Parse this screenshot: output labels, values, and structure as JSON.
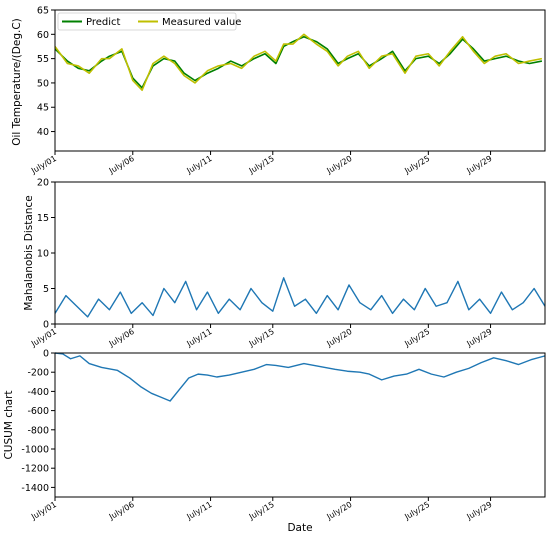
{
  "chart_data": [
    {
      "type": "line",
      "panel": "top",
      "ylabel": "Oil Temperature/(Deg.C)",
      "xlabel": "",
      "ylim": [
        36,
        65
      ],
      "xlim": [
        1,
        32.5
      ],
      "yticks": [
        40,
        45,
        50,
        55,
        60,
        65
      ],
      "xticks": [
        {
          "day": 1,
          "label": "July/01"
        },
        {
          "day": 6,
          "label": "July/06"
        },
        {
          "day": 11,
          "label": "July/11"
        },
        {
          "day": 15,
          "label": "July/15"
        },
        {
          "day": 20,
          "label": "July/20"
        },
        {
          "day": 25,
          "label": "July/25"
        },
        {
          "day": 29,
          "label": "July/29"
        }
      ],
      "legend": {
        "placement": "top-left"
      },
      "series": [
        {
          "name": "Predict",
          "color": "#008000",
          "x": [
            1.0,
            1.8,
            2.5,
            3.2,
            4.0,
            4.5,
            5.3,
            6.0,
            6.6,
            7.3,
            8.0,
            8.7,
            9.3,
            10.0,
            10.8,
            11.5,
            12.3,
            13.0,
            13.8,
            14.5,
            15.2,
            15.7,
            16.3,
            17.0,
            17.8,
            18.5,
            19.2,
            19.8,
            20.5,
            21.2,
            22.0,
            22.7,
            23.5,
            24.2,
            25.0,
            25.7,
            26.4,
            27.2,
            27.9,
            28.6,
            29.3,
            30.0,
            30.8,
            31.5,
            32.3
          ],
          "y": [
            57.0,
            54.5,
            53.0,
            52.5,
            54.5,
            55.5,
            56.5,
            51.0,
            49.0,
            53.5,
            55.0,
            54.5,
            52.0,
            50.5,
            52.0,
            53.0,
            54.5,
            53.5,
            55.0,
            56.0,
            54.0,
            57.5,
            58.5,
            59.5,
            58.5,
            57.0,
            54.0,
            55.0,
            56.0,
            53.5,
            55.0,
            56.5,
            52.5,
            55.0,
            55.5,
            54.0,
            56.0,
            59.0,
            57.0,
            54.5,
            55.0,
            55.5,
            54.5,
            54.0,
            54.5
          ]
        },
        {
          "name": "Measured value",
          "color": "#bfbf00",
          "x": [
            1.0,
            1.8,
            2.5,
            3.2,
            4.0,
            4.5,
            5.3,
            6.0,
            6.6,
            7.3,
            8.0,
            8.7,
            9.3,
            10.0,
            10.8,
            11.5,
            12.3,
            13.0,
            13.8,
            14.5,
            15.2,
            15.7,
            16.3,
            17.0,
            17.8,
            18.5,
            19.2,
            19.8,
            20.5,
            21.2,
            22.0,
            22.7,
            23.5,
            24.2,
            25.0,
            25.7,
            26.4,
            27.2,
            27.9,
            28.6,
            29.3,
            30.0,
            30.8,
            31.5,
            32.3
          ],
          "y": [
            57.5,
            54.0,
            53.5,
            52.0,
            55.0,
            55.0,
            57.0,
            50.5,
            48.5,
            54.0,
            55.5,
            54.0,
            51.5,
            50.0,
            52.5,
            53.5,
            54.0,
            53.0,
            55.5,
            56.5,
            54.5,
            58.0,
            58.0,
            60.0,
            58.0,
            56.5,
            53.5,
            55.5,
            56.5,
            53.0,
            55.5,
            56.0,
            52.0,
            55.5,
            56.0,
            53.5,
            56.5,
            59.5,
            56.5,
            54.0,
            55.5,
            56.0,
            54.0,
            54.5,
            55.0
          ]
        }
      ]
    },
    {
      "type": "line",
      "panel": "middle",
      "ylabel": "Mahalanobis Distance",
      "xlabel": "",
      "ylim": [
        0,
        20
      ],
      "xlim": [
        1,
        32.5
      ],
      "yticks": [
        0,
        5,
        10,
        15,
        20
      ],
      "xticks": [
        {
          "day": 1,
          "label": "July/01"
        },
        {
          "day": 6,
          "label": "July/06"
        },
        {
          "day": 11,
          "label": "July/11"
        },
        {
          "day": 15,
          "label": "July/15"
        },
        {
          "day": 20,
          "label": "July/20"
        },
        {
          "day": 25,
          "label": "July/25"
        },
        {
          "day": 29,
          "label": "July/29"
        }
      ],
      "series": [
        {
          "color": "#1f77b4",
          "x": [
            1.0,
            1.7,
            2.4,
            3.1,
            3.8,
            4.5,
            5.2,
            5.9,
            6.6,
            7.3,
            8.0,
            8.7,
            9.4,
            10.1,
            10.8,
            11.5,
            12.2,
            12.9,
            13.6,
            14.3,
            15.0,
            15.7,
            16.4,
            17.1,
            17.8,
            18.5,
            19.2,
            19.9,
            20.6,
            21.3,
            22.0,
            22.7,
            23.4,
            24.1,
            24.8,
            25.5,
            26.2,
            26.9,
            27.6,
            28.3,
            29.0,
            29.7,
            30.4,
            31.1,
            31.8,
            32.5
          ],
          "y": [
            1.5,
            4.0,
            2.5,
            1.0,
            3.5,
            2.0,
            4.5,
            1.5,
            3.0,
            1.2,
            5.0,
            3.0,
            6.0,
            2.0,
            4.5,
            1.5,
            3.5,
            2.0,
            5.0,
            3.0,
            1.8,
            6.5,
            2.5,
            3.5,
            1.5,
            4.0,
            2.0,
            5.5,
            3.0,
            2.0,
            4.0,
            1.5,
            3.5,
            2.0,
            5.0,
            2.5,
            3.0,
            6.0,
            2.0,
            3.5,
            1.5,
            4.5,
            2.0,
            3.0,
            5.0,
            2.5
          ]
        }
      ]
    },
    {
      "type": "line",
      "panel": "bottom",
      "ylabel": "CUSUM chart",
      "xlabel": "Date",
      "ylim": [
        -1500,
        0
      ],
      "xlim": [
        1,
        32.5
      ],
      "yticks": [
        0,
        -200,
        -400,
        -600,
        -800,
        -1000,
        -1200,
        -1400
      ],
      "xticks": [
        {
          "day": 1,
          "label": "July/01"
        },
        {
          "day": 6,
          "label": "July/06"
        },
        {
          "day": 11,
          "label": "July/11"
        },
        {
          "day": 15,
          "label": "July/15"
        },
        {
          "day": 20,
          "label": "July/20"
        },
        {
          "day": 25,
          "label": "July/25"
        },
        {
          "day": 29,
          "label": "July/29"
        }
      ],
      "series": [
        {
          "color": "#1f77b4",
          "x": [
            1.0,
            1.5,
            2.0,
            2.6,
            3.2,
            4.0,
            5.0,
            5.8,
            6.5,
            7.2,
            7.8,
            8.4,
            9.0,
            9.6,
            10.2,
            10.8,
            11.4,
            12.2,
            13.0,
            13.8,
            14.6,
            15.2,
            16.0,
            17.0,
            18.0,
            19.0,
            19.8,
            20.6,
            21.2,
            22.0,
            22.8,
            23.6,
            24.4,
            25.2,
            26.0,
            26.8,
            27.6,
            28.4,
            29.2,
            30.0,
            30.8,
            31.6,
            32.5
          ],
          "y": [
            0,
            -10,
            -60,
            -30,
            -110,
            -150,
            -180,
            -260,
            -350,
            -420,
            -460,
            -500,
            -380,
            -260,
            -220,
            -230,
            -250,
            -230,
            -200,
            -170,
            -120,
            -130,
            -150,
            -110,
            -140,
            -170,
            -190,
            -200,
            -220,
            -280,
            -240,
            -220,
            -170,
            -220,
            -250,
            -200,
            -160,
            -100,
            -50,
            -80,
            -120,
            -70,
            -30
          ]
        }
      ]
    }
  ]
}
